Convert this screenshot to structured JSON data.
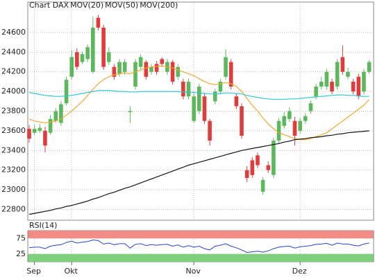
{
  "chart_data": [
    {
      "type": "candlestick",
      "name": "Chart DAX",
      "color": "#e8463a",
      "up_color": "#5cb85c",
      "down_color": "#e03c3c",
      "categories": [
        null,
        "Sep",
        null,
        null,
        null,
        null,
        null,
        null,
        "Okt",
        null,
        null,
        null,
        null,
        null,
        null,
        null,
        null,
        null,
        null,
        null,
        null,
        null,
        null,
        null,
        null,
        null,
        null,
        null,
        null,
        null,
        null,
        "Nov",
        null,
        null,
        null,
        null,
        null,
        null,
        null,
        null,
        null,
        null,
        null,
        null,
        null,
        null,
        null,
        null,
        null,
        null,
        null,
        "Dez",
        null,
        null,
        null,
        null,
        null,
        null,
        null,
        null,
        null,
        null,
        null,
        null,
        null
      ],
      "open": [
        23620,
        23580,
        23600,
        23600,
        23580,
        23700,
        23680,
        23880,
        24150,
        24400,
        24300,
        24330,
        24200,
        24750,
        24650,
        24300,
        24250,
        24180,
        24200,
        23790,
        24050,
        24250,
        24300,
        24200,
        24280,
        24330,
        24200,
        24300,
        24150,
        24100,
        23950,
        23700,
        23800,
        23950,
        23700,
        23900,
        24000,
        24150,
        24300,
        23950,
        23850,
        23200,
        23300,
        23350,
        22980,
        23250,
        23150,
        23500,
        23650,
        23720,
        23700,
        23600,
        23700,
        23800,
        23950,
        24050,
        24050,
        24100,
        24050,
        24350,
        24150,
        24100,
        24150,
        24000,
        24200
      ],
      "high": [
        23660,
        23660,
        23670,
        23640,
        23760,
        23830,
        23900,
        24150,
        24420,
        24440,
        24410,
        24480,
        24760,
        24780,
        24680,
        24450,
        24280,
        24330,
        24330,
        23850,
        24330,
        24380,
        24320,
        24280,
        24310,
        24350,
        24330,
        24320,
        24280,
        24130,
        24130,
        23980,
        24080,
        23980,
        23720,
        24030,
        24130,
        24430,
        24330,
        23980,
        23880,
        23240,
        23330,
        23380,
        23130,
        23290,
        23530,
        23730,
        23790,
        23840,
        23740,
        23730,
        23780,
        23910,
        24080,
        24150,
        24230,
        24130,
        24330,
        24470,
        24240,
        24130,
        24180,
        24230,
        24320
      ],
      "low": [
        23480,
        23560,
        23580,
        23380,
        23560,
        23680,
        23650,
        23860,
        24120,
        24220,
        24280,
        24300,
        24180,
        24620,
        24220,
        24270,
        24120,
        24150,
        24170,
        23680,
        24020,
        24220,
        24120,
        24170,
        24170,
        24250,
        24170,
        24070,
        24120,
        23920,
        23920,
        23680,
        23770,
        23670,
        23450,
        23870,
        23970,
        24120,
        24020,
        23820,
        23520,
        23080,
        23120,
        23220,
        22950,
        23170,
        23120,
        23470,
        23620,
        23690,
        23450,
        23570,
        23670,
        23770,
        23920,
        24020,
        24020,
        23970,
        24020,
        24170,
        24120,
        23970,
        23920,
        23970,
        24180
      ],
      "close": [
        23520,
        23620,
        23630,
        23450,
        23720,
        23800,
        23870,
        24120,
        24350,
        24250,
        24380,
        24450,
        24650,
        24650,
        24250,
        24400,
        24150,
        24300,
        24300,
        23800,
        24300,
        24350,
        24150,
        24250,
        24200,
        24280,
        24300,
        24100,
        24250,
        23950,
        24100,
        23950,
        24050,
        23700,
        23500,
        24000,
        24100,
        24350,
        24050,
        23850,
        23550,
        23120,
        23150,
        23250,
        23100,
        23200,
        23500,
        23700,
        23750,
        23800,
        23550,
        23700,
        23750,
        23880,
        24050,
        24100,
        24200,
        24000,
        24300,
        24200,
        24200,
        24000,
        23950,
        24200,
        24300
      ],
      "series": [
        {
          "name": "MOV(20)",
          "color": "#f0a830",
          "values": [
            23720,
            23700,
            23690,
            23680,
            23690,
            23700,
            23720,
            23760,
            23800,
            23850,
            23900,
            23960,
            24020,
            24080,
            24120,
            24150,
            24170,
            24180,
            24190,
            24180,
            24200,
            24220,
            24240,
            24250,
            24255,
            24260,
            24250,
            24240,
            24220,
            24200,
            24180,
            24160,
            24130,
            24100,
            24080,
            24070,
            24080,
            24090,
            24080,
            24050,
            24000,
            23930,
            23860,
            23800,
            23730,
            23670,
            23620,
            23580,
            23560,
            23540,
            23520,
            23510,
            23510,
            23520,
            23540,
            23560,
            23580,
            23620,
            23660,
            23700,
            23740,
            23780,
            23820,
            23860,
            23920
          ]
        },
        {
          "name": "MOV(50)",
          "color": "#30c8d8",
          "values": [
            23990,
            23980,
            23970,
            23960,
            23955,
            23950,
            23950,
            23955,
            23960,
            23970,
            23980,
            23990,
            24000,
            24010,
            24010,
            24010,
            24005,
            24000,
            24000,
            23995,
            23995,
            24000,
            24000,
            24000,
            24000,
            24000,
            24000,
            24000,
            24000,
            23995,
            23990,
            23990,
            23985,
            23980,
            23975,
            23975,
            23980,
            23985,
            23985,
            23980,
            23975,
            23960,
            23950,
            23940,
            23930,
            23925,
            23920,
            23920,
            23920,
            23925,
            23925,
            23930,
            23935,
            23940,
            23945,
            23950,
            23955,
            23960,
            23965,
            23965,
            23960,
            23960,
            23955,
            23950,
            23950
          ]
        },
        {
          "name": "MOV(200)",
          "color": "#111111",
          "values": [
            22750,
            22760,
            22770,
            22780,
            22790,
            22805,
            22815,
            22830,
            22840,
            22855,
            22870,
            22885,
            22905,
            22920,
            22940,
            22960,
            22975,
            22995,
            23015,
            23030,
            23050,
            23070,
            23090,
            23110,
            23130,
            23150,
            23170,
            23190,
            23210,
            23230,
            23250,
            23265,
            23280,
            23295,
            23310,
            23325,
            23340,
            23355,
            23370,
            23385,
            23400,
            23410,
            23420,
            23430,
            23440,
            23450,
            23460,
            23470,
            23485,
            23495,
            23510,
            23515,
            23520,
            23530,
            23535,
            23540,
            23550,
            23555,
            23565,
            23570,
            23580,
            23585,
            23590,
            23595,
            23600
          ]
        }
      ],
      "ylim": [
        22690,
        24910
      ],
      "yticks": [
        22800,
        23000,
        23200,
        23400,
        23600,
        23800,
        24000,
        24200,
        24400,
        24600
      ],
      "grid": true
    },
    {
      "type": "line",
      "title": "RSI(14)",
      "ylim": [
        0,
        100
      ],
      "yticks": [
        25,
        75
      ],
      "grid": true,
      "bands": [
        {
          "from": 75,
          "to": 100,
          "color": "#f28b86"
        },
        {
          "from": 0,
          "to": 25,
          "color": "#7ed07a"
        }
      ],
      "series": [
        {
          "color": "#2a3fd0",
          "values": [
            45,
            47,
            47,
            42,
            50,
            53,
            55,
            62,
            66,
            60,
            63,
            65,
            70,
            68,
            57,
            60,
            55,
            58,
            58,
            44,
            56,
            58,
            52,
            55,
            53,
            55,
            56,
            50,
            54,
            47,
            52,
            47,
            50,
            42,
            38,
            50,
            53,
            58,
            50,
            45,
            38,
            30,
            32,
            34,
            31,
            35,
            42,
            47,
            49,
            50,
            44,
            48,
            50,
            52,
            56,
            57,
            59,
            53,
            60,
            57,
            57,
            53,
            51,
            57,
            60
          ]
        }
      ]
    }
  ]
}
